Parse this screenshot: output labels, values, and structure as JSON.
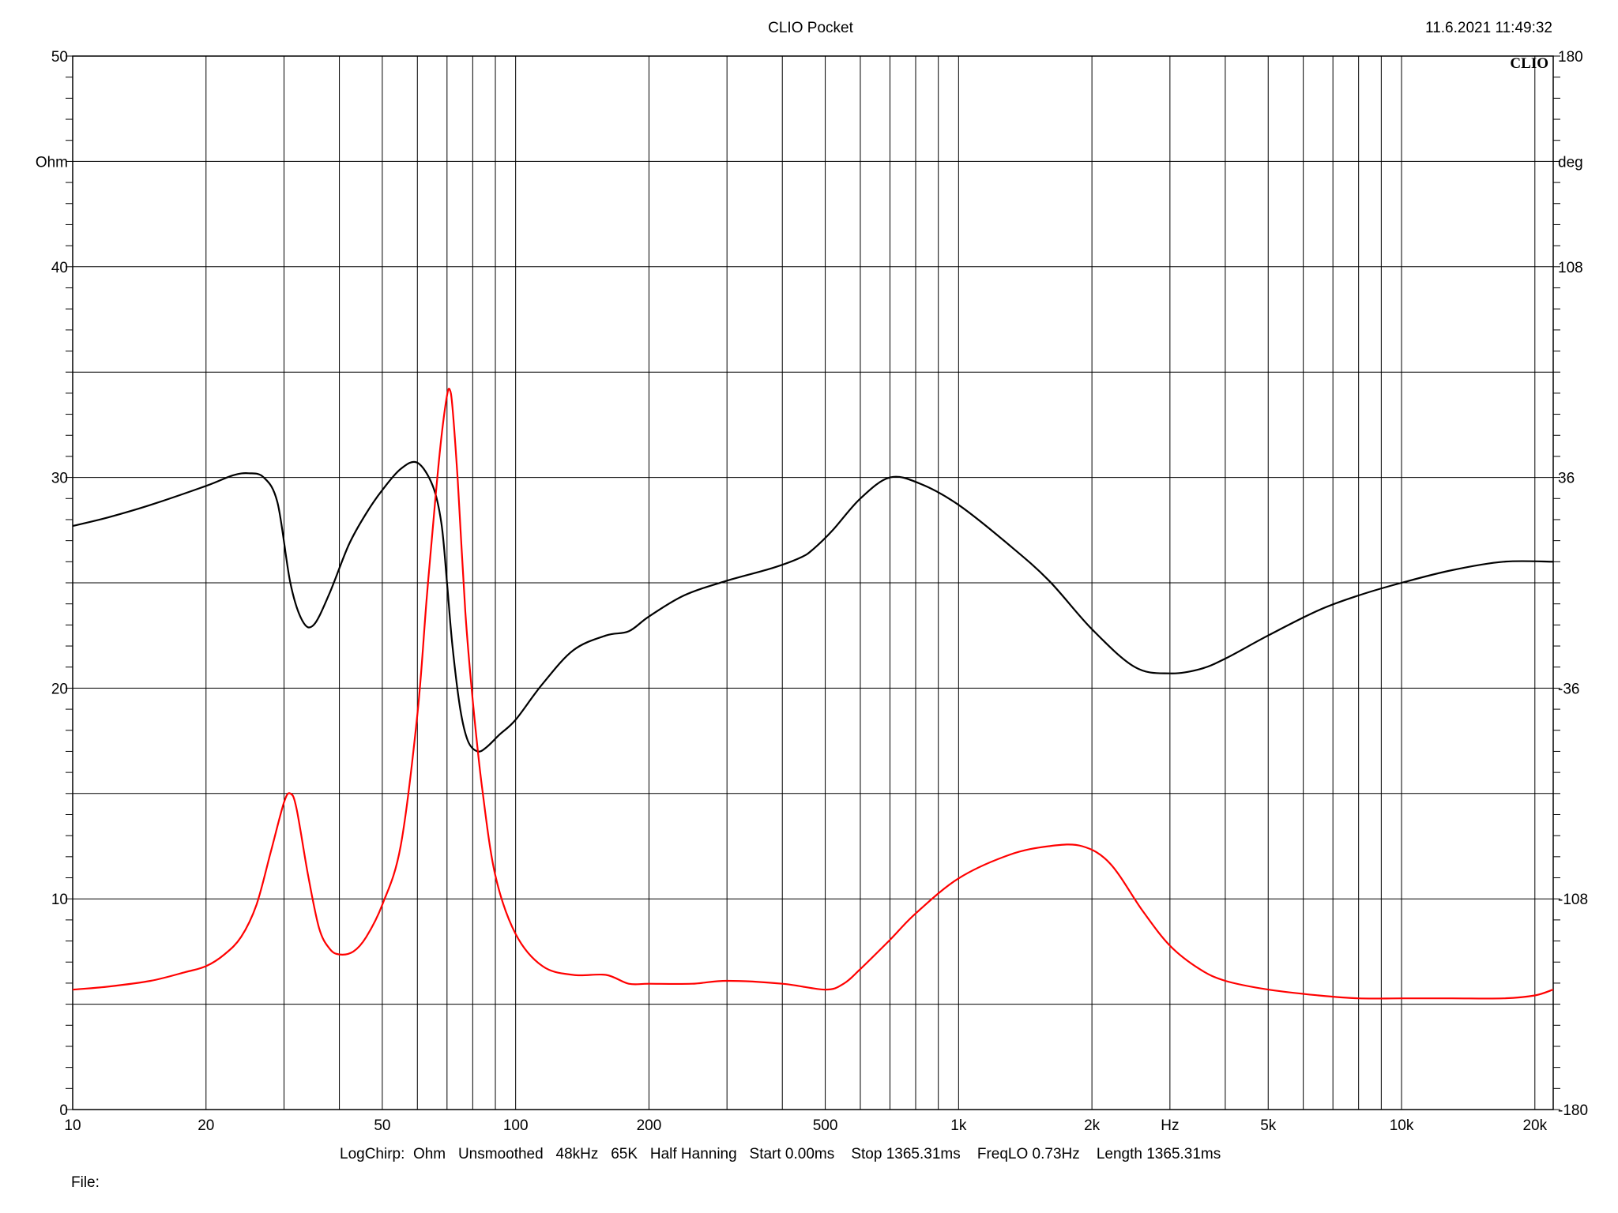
{
  "title": "CLIO Pocket",
  "timestamp": "11.6.2021 11:49:32",
  "brand": "CLIO",
  "footer": {
    "measurement": "LogChirp:  Ohm   Unsmoothed   48kHz   65K   Half Hanning   Start 0.00ms    Stop 1365.31ms    FreqLO 0.73Hz    Length 1365.31ms",
    "file_label": "File:"
  },
  "colors": {
    "background": "#ffffff",
    "grid": "#000000",
    "impedance": "#000000",
    "phase": "#ff0000"
  },
  "chart_data": {
    "type": "line",
    "x_scale": "log",
    "xlim": [
      10,
      22000
    ],
    "ylim_left": [
      0,
      50
    ],
    "ylim_right": [
      -180,
      180
    ],
    "xlabel": "Hz",
    "ylabel_left": "Ohm",
    "ylabel_right": "deg",
    "grid": true,
    "x_tick_labels": [
      {
        "value": 10,
        "label": "10"
      },
      {
        "value": 20,
        "label": "20"
      },
      {
        "value": 50,
        "label": "50"
      },
      {
        "value": 100,
        "label": "100"
      },
      {
        "value": 200,
        "label": "200"
      },
      {
        "value": 500,
        "label": "500"
      },
      {
        "value": 1000,
        "label": "1k"
      },
      {
        "value": 2000,
        "label": "2k"
      },
      {
        "value": 5000,
        "label": "5k"
      },
      {
        "value": 10000,
        "label": "10k"
      },
      {
        "value": 20000,
        "label": "20k"
      }
    ],
    "x_unit_label_value": 3000,
    "y_left_ticks": [
      0,
      10,
      20,
      30,
      40,
      50
    ],
    "y_right_ticks": [
      -180,
      -108,
      -36,
      36,
      108,
      180
    ],
    "series": [
      {
        "axis": "left",
        "x": [
          10,
          12,
          15,
          20,
          23,
          25,
          27,
          29,
          31,
          33,
          35,
          38,
          42,
          46,
          50,
          55,
          60,
          65,
          68,
          70,
          72,
          75,
          78,
          82,
          86,
          92,
          100,
          115,
          135,
          160,
          180,
          200,
          240,
          300,
          380,
          440,
          470,
          520,
          600,
          700,
          820,
          1000,
          1300,
          1600,
          2000,
          2500,
          3000,
          3500,
          4000,
          5000,
          6500,
          8000,
          10000,
          13000,
          17000,
          22000
        ],
        "y": [
          27.7,
          28.1,
          28.7,
          29.6,
          30.1,
          30.2,
          30.0,
          28.8,
          25.0,
          23.2,
          23.0,
          24.5,
          26.8,
          28.3,
          29.4,
          30.4,
          30.7,
          29.6,
          27.8,
          25.0,
          22.0,
          19.0,
          17.5,
          17.0,
          17.2,
          17.8,
          18.5,
          20.2,
          21.8,
          22.5,
          22.7,
          23.4,
          24.4,
          25.1,
          25.7,
          26.2,
          26.6,
          27.5,
          29.0,
          30.0,
          29.7,
          28.7,
          26.8,
          25.1,
          22.8,
          21.0,
          20.7,
          20.9,
          21.4,
          22.5,
          23.7,
          24.4,
          25.0,
          25.6,
          26.0,
          26.0
        ]
      },
      {
        "axis": "right",
        "x": [
          10,
          12,
          15,
          18,
          20,
          22,
          24,
          26,
          28,
          30,
          31,
          32,
          34,
          36,
          38,
          40,
          43,
          46,
          50,
          55,
          60,
          63,
          66,
          68,
          70,
          71,
          72,
          74,
          77,
          80,
          84,
          90,
          100,
          115,
          135,
          160,
          180,
          200,
          250,
          300,
          400,
          500,
          550,
          600,
          700,
          800,
          1000,
          1300,
          1600,
          1900,
          2200,
          2600,
          3000,
          3500,
          4000,
          5000,
          6500,
          8000,
          10000,
          13000,
          17000,
          20000,
          22000
        ],
        "y": [
          -139,
          -138,
          -136,
          -133,
          -131,
          -127,
          -121,
          -110,
          -92,
          -75,
          -72,
          -77,
          -100,
          -118,
          -125,
          -127,
          -126,
          -121,
          -110,
          -90,
          -45,
          -5,
          30,
          50,
          64,
          66,
          60,
          35,
          -10,
          -40,
          -70,
          -100,
          -120,
          -131,
          -134,
          -134,
          -137,
          -137,
          -137,
          -136,
          -137,
          -139,
          -137,
          -132,
          -122,
          -113,
          -101,
          -93,
          -90,
          -90,
          -96,
          -112,
          -124,
          -132,
          -136,
          -139,
          -141,
          -142,
          -142,
          -142,
          -142,
          -141,
          -139
        ]
      }
    ]
  }
}
